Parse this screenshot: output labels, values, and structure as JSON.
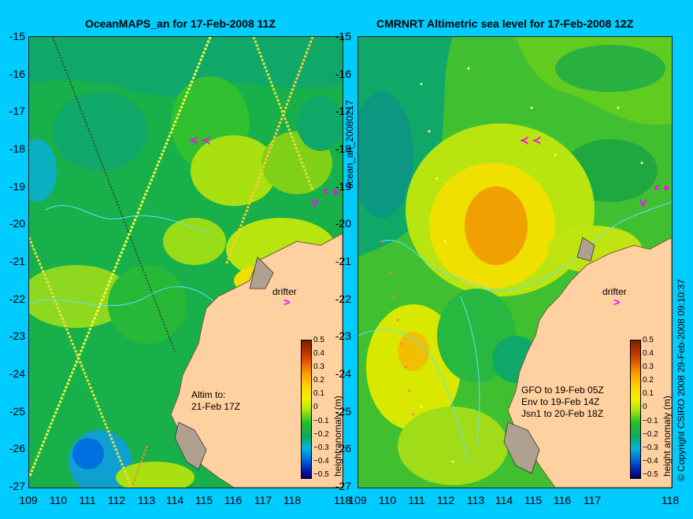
{
  "left": {
    "title": "OceanMAPS_an for 17-Feb-2008 11Z",
    "drifter_label": "drifter",
    "altim_note": "Altim to:\n21-Feb 17Z"
  },
  "right": {
    "title": "CMRNRT Altimetric sea level  for 17-Feb-2008 12Z",
    "drifter_label": "drifter",
    "satellite_note": "GFO to 19-Feb 05Z\nEnv to 19-Feb 14Z\nJsn1 to 20-Feb 18Z"
  },
  "file_label": "ocean_an_20080217",
  "copyright": "© Copyright CSIRO 2008   29-Feb-2008 09:10:37",
  "colorbar": {
    "label": "height anomaly (m)",
    "ticks": [
      "0.5",
      "0.4",
      "0.3",
      "0.2",
      "0.1",
      "0",
      "−0.1",
      "−0.2",
      "−0.3",
      "−0.4",
      "−0.5"
    ]
  },
  "axes": {
    "lat_ticks": [
      "-15",
      "-16",
      "-17",
      "-18",
      "-19",
      "-20",
      "-21",
      "-22",
      "-23",
      "-24",
      "-25",
      "-26",
      "-27"
    ],
    "lon_ticks": [
      "109",
      "110",
      "111",
      "112",
      "113",
      "114",
      "115",
      "116",
      "117",
      "118"
    ]
  },
  "colors": {
    "background": "#00ccff",
    "land": "#ffd0a0",
    "drifter_marker": "#ff00ff"
  }
}
